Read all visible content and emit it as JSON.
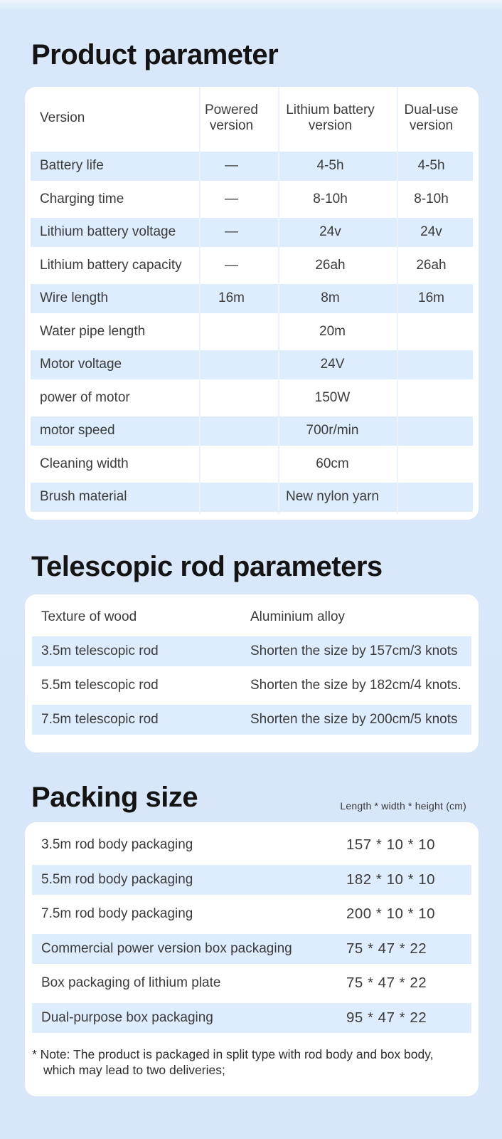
{
  "colors": {
    "page_background": "#d7e7f9",
    "card_background": "#ffffff",
    "row_stripe": "#ddedfd",
    "title_text": "#141414",
    "body_text": "#3b3b3b"
  },
  "product_parameter": {
    "title": "Product parameter",
    "columns": [
      "Version",
      "Powered version",
      "Lithium battery version",
      "Dual-use version"
    ],
    "rows": [
      {
        "label": "Battery life",
        "values": [
          "—",
          "4-5h",
          "4-5h"
        ]
      },
      {
        "label": "Charging time",
        "values": [
          "—",
          "8-10h",
          "8-10h"
        ]
      },
      {
        "label": "Lithium battery voltage",
        "values": [
          "—",
          "24v",
          "24v"
        ]
      },
      {
        "label": "Lithium battery capacity",
        "values": [
          "—",
          "26ah",
          "26ah"
        ]
      },
      {
        "label": "Wire length",
        "values": [
          "16m",
          "8m",
          "16m"
        ]
      },
      {
        "label": "Water pipe length",
        "value": "20m"
      },
      {
        "label": "Motor voltage",
        "value": "24V"
      },
      {
        "label": "power of motor",
        "value": "150W"
      },
      {
        "label": "motor speed",
        "value": "700r/min"
      },
      {
        "label": "Cleaning width",
        "value": "60cm"
      },
      {
        "label": "Brush material",
        "value": "New nylon yarn"
      }
    ]
  },
  "telescopic_rod": {
    "title": "Telescopic rod parameters",
    "rows": [
      {
        "label": "Texture of wood",
        "value": "Aluminium alloy"
      },
      {
        "label": "3.5m telescopic rod",
        "value": "Shorten the size by 157cm/3 knots"
      },
      {
        "label": "5.5m telescopic rod",
        "value": "Shorten the size by 182cm/4 knots."
      },
      {
        "label": "7.5m telescopic rod",
        "value": "Shorten the size by 200cm/5 knots"
      }
    ]
  },
  "packing_size": {
    "title": "Packing size",
    "unit_label": "Length *  width * height (cm)",
    "rows": [
      {
        "label": "3.5m rod body packaging",
        "value": "157 * 10 * 10"
      },
      {
        "label": "5.5m rod body packaging",
        "value": "182 * 10 * 10"
      },
      {
        "label": "7.5m rod body packaging",
        "value": "200 * 10 * 10"
      },
      {
        "label": "Commercial power version box packaging",
        "value": "75 * 47 * 22"
      },
      {
        "label": "Box packaging of lithium plate",
        "value": "75 * 47 * 22"
      },
      {
        "label": "Dual-purpose box packaging",
        "value": "95 * 47 * 22"
      }
    ],
    "note_lines": [
      "* Note: The product is packaged in split type with rod body and box body,",
      "which may lead to two deliveries;"
    ]
  }
}
